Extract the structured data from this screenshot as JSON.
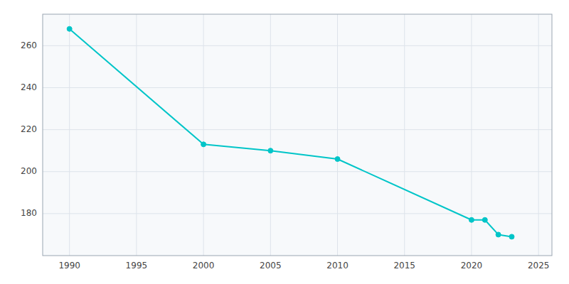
{
  "chart_data": {
    "type": "line",
    "x": [
      1990,
      2000,
      2005,
      2010,
      2020,
      2021,
      2022,
      2023
    ],
    "values": [
      268,
      213,
      210,
      206,
      177,
      177,
      170,
      169
    ],
    "color": "#00C5C8",
    "marker": "circle",
    "xlim": [
      1988,
      2026
    ],
    "ylim": [
      160,
      275
    ],
    "xticks": [
      1990,
      1995,
      2000,
      2005,
      2010,
      2015,
      2020,
      2025
    ],
    "yticks": [
      180,
      200,
      220,
      240,
      260
    ],
    "grid": true
  }
}
